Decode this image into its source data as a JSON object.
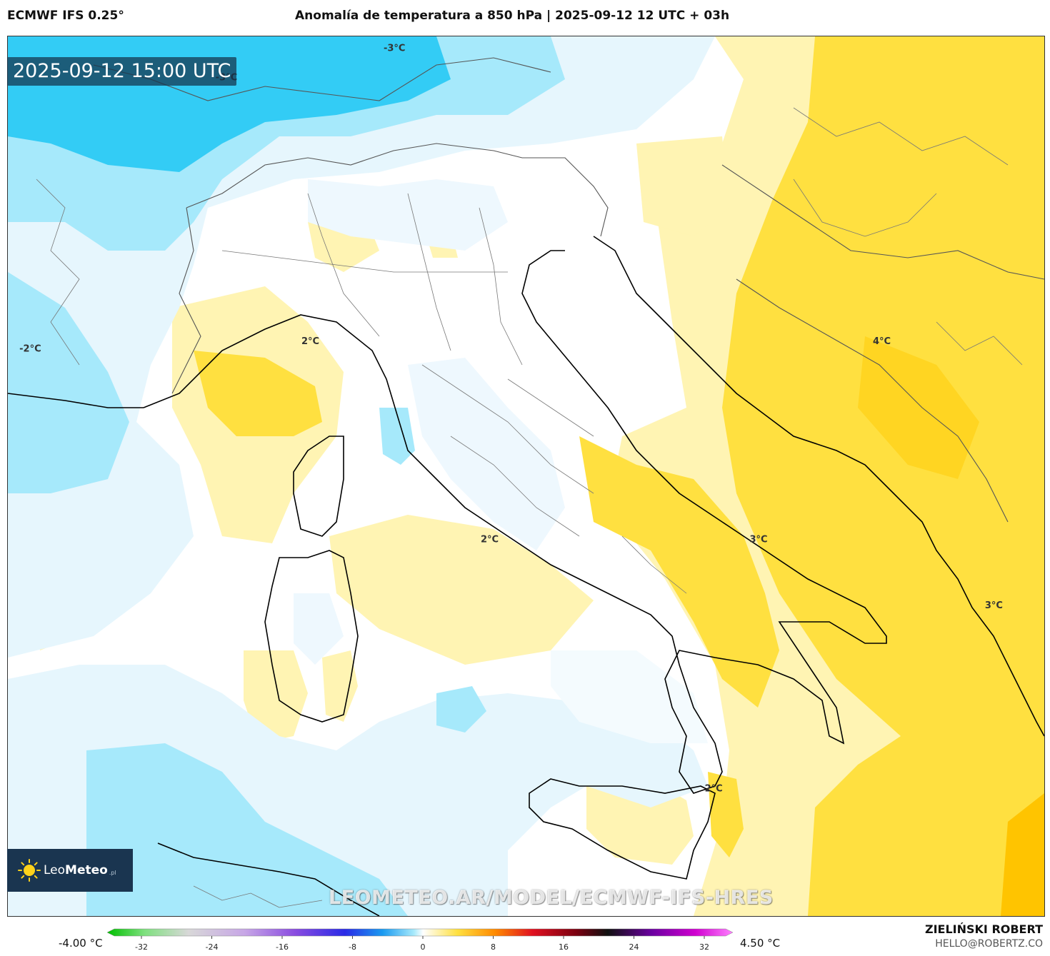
{
  "header": {
    "model": "ECMWF IFS 0.25°",
    "title": "Anomalía de temperatura a 850 hPa | 2025-09-12 12 UTC + 03h"
  },
  "map": {
    "valid_time": "2025-09-12 15:00 UTC",
    "contour_labels": [
      {
        "text": "-3°C",
        "lon": 9.9,
        "lat": 47.3
      },
      {
        "text": "-3°C",
        "lon": 6.9,
        "lat": 46.9
      },
      {
        "text": "-2°C",
        "lon": 3.4,
        "lat": 43.2
      },
      {
        "text": "2°C",
        "lon": 8.4,
        "lat": 43.3
      },
      {
        "text": "2°C",
        "lon": 11.6,
        "lat": 40.6
      },
      {
        "text": "3°C",
        "lon": 16.4,
        "lat": 40.6
      },
      {
        "text": "4°C",
        "lon": 18.6,
        "lat": 43.3
      },
      {
        "text": "3°C",
        "lon": 20.6,
        "lat": 39.7
      },
      {
        "text": "2°C",
        "lon": 15.6,
        "lat": 37.2
      }
    ],
    "field_min": "-4.00 °C",
    "field_max": "4.50 °C",
    "colors": {
      "cold_strong": "#33ccf5",
      "cold": "#a6e9fb",
      "cold_light": "#e6f6fd",
      "neutral": "#ffffff",
      "warm_light": "#fff4b3",
      "warm": "#ffe040",
      "warm_strong": "#ffc400"
    }
  },
  "logo": {
    "brand_light": "Leo",
    "brand_bold": "Meteo",
    "suffix": ".pl"
  },
  "watermark": "LEOMETEO.AR/MODEL/ECMWF-IFS-HRES",
  "colorbar": {
    "ticks": [
      "-32",
      "-24",
      "-16",
      "-8",
      "0",
      "8",
      "16",
      "24",
      "32"
    ]
  },
  "credit": {
    "name": "ZIELIŃSKI ROBERT",
    "email": "HELLO@ROBERTZ.CO"
  }
}
